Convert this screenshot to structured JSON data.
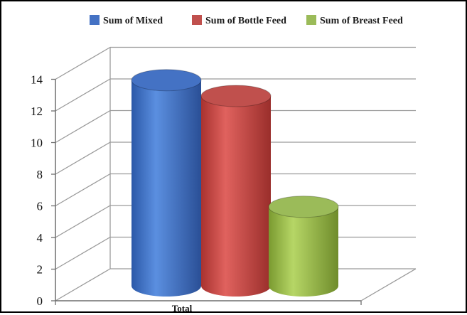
{
  "chart_data": {
    "type": "bar",
    "style": "3d-cylinder",
    "categories": [
      "Total"
    ],
    "series": [
      {
        "name": "Sum of Mixed",
        "values": [
          13
        ],
        "color": "#4472c4"
      },
      {
        "name": "Sum of Bottle Feed",
        "values": [
          12
        ],
        "color": "#c0504d"
      },
      {
        "name": "Sum of Breast Feed",
        "values": [
          5
        ],
        "color": "#9bbb59"
      }
    ],
    "y_ticks": [
      "0",
      "2",
      "4",
      "6",
      "8",
      "10",
      "12",
      "14"
    ],
    "ylim": [
      0,
      14
    ],
    "grid": true,
    "legend_position": "top"
  }
}
